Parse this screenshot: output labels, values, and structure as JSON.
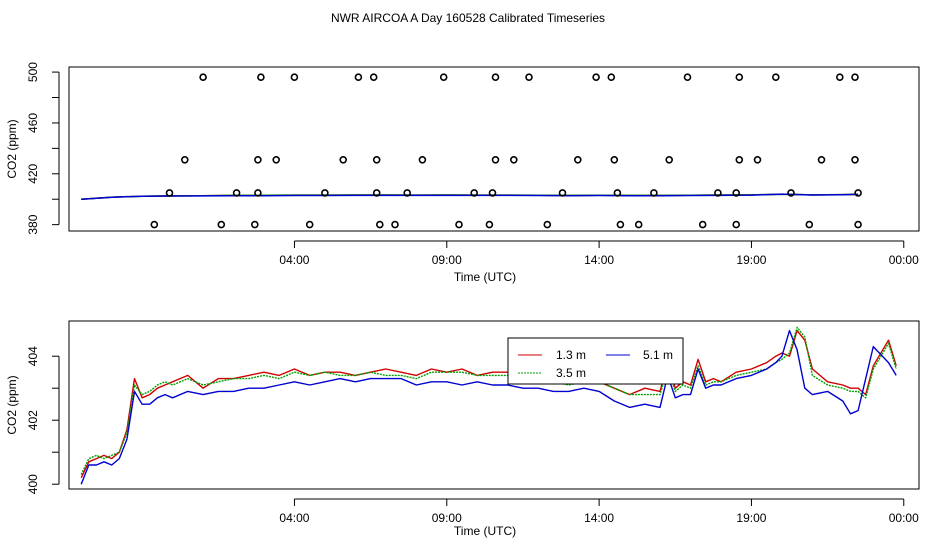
{
  "chart_data": [
    {
      "type": "scatter",
      "title": "NWR AIRCOA A  Day 160528  Calibrated Timeseries",
      "xlabel": "Time (UTC)",
      "ylabel": "CO2 (ppm)",
      "xlim": [
        -3.4,
        24.5
      ],
      "ylim": [
        375,
        504
      ],
      "x_tick_values": [
        4,
        9,
        14,
        19,
        24
      ],
      "x_tick_labels": [
        "04:00",
        "09:00",
        "14:00",
        "19:00",
        "00:00"
      ],
      "y_tick_values": [
        380,
        420,
        460,
        500
      ],
      "y_tick_labels": [
        "380",
        "420",
        "460",
        "500"
      ],
      "y_minor_ticks": [
        400,
        440,
        480
      ],
      "points": [
        {
          "x": -0.6,
          "y": 380
        },
        {
          "x": -0.1,
          "y": 405
        },
        {
          "x": 0.4,
          "y": 431
        },
        {
          "x": 1.0,
          "y": 496
        },
        {
          "x": 1.6,
          "y": 380
        },
        {
          "x": 2.1,
          "y": 405
        },
        {
          "x": 2.7,
          "y": 380
        },
        {
          "x": 2.8,
          "y": 405
        },
        {
          "x": 2.8,
          "y": 431
        },
        {
          "x": 2.9,
          "y": 496
        },
        {
          "x": 3.4,
          "y": 431
        },
        {
          "x": 4.0,
          "y": 496
        },
        {
          "x": 4.5,
          "y": 380
        },
        {
          "x": 5.0,
          "y": 405
        },
        {
          "x": 5.6,
          "y": 431
        },
        {
          "x": 6.1,
          "y": 496
        },
        {
          "x": 6.6,
          "y": 496
        },
        {
          "x": 6.7,
          "y": 431
        },
        {
          "x": 6.7,
          "y": 405
        },
        {
          "x": 6.8,
          "y": 380
        },
        {
          "x": 7.3,
          "y": 380
        },
        {
          "x": 7.7,
          "y": 405
        },
        {
          "x": 8.2,
          "y": 431
        },
        {
          "x": 8.9,
          "y": 496
        },
        {
          "x": 9.4,
          "y": 380
        },
        {
          "x": 9.9,
          "y": 405
        },
        {
          "x": 10.4,
          "y": 380
        },
        {
          "x": 10.5,
          "y": 405
        },
        {
          "x": 10.6,
          "y": 431
        },
        {
          "x": 10.6,
          "y": 496
        },
        {
          "x": 11.2,
          "y": 431
        },
        {
          "x": 11.7,
          "y": 496
        },
        {
          "x": 12.3,
          "y": 380
        },
        {
          "x": 12.8,
          "y": 405
        },
        {
          "x": 13.3,
          "y": 431
        },
        {
          "x": 13.9,
          "y": 496
        },
        {
          "x": 14.4,
          "y": 496
        },
        {
          "x": 14.5,
          "y": 431
        },
        {
          "x": 14.6,
          "y": 405
        },
        {
          "x": 14.7,
          "y": 380
        },
        {
          "x": 15.3,
          "y": 380
        },
        {
          "x": 15.8,
          "y": 405
        },
        {
          "x": 16.3,
          "y": 431
        },
        {
          "x": 16.9,
          "y": 496
        },
        {
          "x": 17.4,
          "y": 380
        },
        {
          "x": 17.9,
          "y": 405
        },
        {
          "x": 18.5,
          "y": 380
        },
        {
          "x": 18.5,
          "y": 405
        },
        {
          "x": 18.6,
          "y": 431
        },
        {
          "x": 18.6,
          "y": 496
        },
        {
          "x": 19.2,
          "y": 431
        },
        {
          "x": 19.8,
          "y": 496
        },
        {
          "x": 20.3,
          "y": 405
        },
        {
          "x": 20.9,
          "y": 380
        },
        {
          "x": 21.3,
          "y": 431
        },
        {
          "x": 21.9,
          "y": 496
        },
        {
          "x": 22.4,
          "y": 496
        },
        {
          "x": 22.4,
          "y": 431
        },
        {
          "x": 22.5,
          "y": 405
        },
        {
          "x": 22.5,
          "y": 380
        }
      ],
      "lines": [
        {
          "name": "1.3 m",
          "color": "#d00000",
          "x": [
            -3.0,
            -2.0,
            -1.0,
            0.0,
            1.0,
            2.0,
            3.0,
            4.0,
            5.0,
            6.0,
            7.0,
            8.0,
            9.0,
            10.0,
            11.0,
            12.0,
            13.0,
            14.0,
            15.0,
            16.0,
            17.0,
            18.0,
            19.0,
            20.0,
            21.0,
            22.0,
            22.5
          ],
          "y": [
            400.0,
            401.6,
            402.4,
            402.6,
            402.8,
            403.0,
            403.1,
            403.2,
            403.2,
            403.3,
            403.3,
            403.2,
            403.3,
            403.2,
            403.2,
            403.1,
            403.0,
            403.1,
            403.0,
            403.0,
            403.1,
            403.3,
            403.4,
            403.9,
            403.4,
            403.6,
            403.9
          ]
        },
        {
          "name": "3.5 m",
          "color": "#00a000",
          "x": [
            -3.0,
            -2.0,
            -1.0,
            0.0,
            1.0,
            2.0,
            3.0,
            4.0,
            5.0,
            6.0,
            7.0,
            8.0,
            9.0,
            10.0,
            11.0,
            12.0,
            13.0,
            14.0,
            15.0,
            16.0,
            17.0,
            18.0,
            19.0,
            20.0,
            21.0,
            22.0,
            22.5
          ],
          "y": [
            400.0,
            401.6,
            402.4,
            402.6,
            402.8,
            403.0,
            403.1,
            403.2,
            403.2,
            403.3,
            403.3,
            403.2,
            403.3,
            403.2,
            403.2,
            403.1,
            403.0,
            403.1,
            403.0,
            403.0,
            403.1,
            403.3,
            403.4,
            403.9,
            403.4,
            403.6,
            403.9
          ]
        },
        {
          "name": "5.1 m",
          "color": "#0000d0",
          "x": [
            -3.0,
            -2.0,
            -1.0,
            0.0,
            1.0,
            2.0,
            3.0,
            4.0,
            5.0,
            6.0,
            7.0,
            8.0,
            9.0,
            10.0,
            11.0,
            12.0,
            13.0,
            14.0,
            15.0,
            16.0,
            17.0,
            18.0,
            19.0,
            20.0,
            21.0,
            22.0,
            22.5
          ],
          "y": [
            400.0,
            401.6,
            402.4,
            402.5,
            402.6,
            402.7,
            402.8,
            402.9,
            402.9,
            403.0,
            403.0,
            403.0,
            403.0,
            403.0,
            403.0,
            402.9,
            402.8,
            402.9,
            402.8,
            402.8,
            402.9,
            403.0,
            403.2,
            404.0,
            403.3,
            403.5,
            403.8
          ]
        }
      ]
    },
    {
      "type": "line",
      "title": "",
      "xlabel": "Time (UTC)",
      "ylabel": "CO2 (ppm)",
      "xlim": [
        -3.4,
        24.5
      ],
      "ylim": [
        399.85,
        405.1
      ],
      "x_tick_values": [
        4,
        9,
        14,
        19,
        24
      ],
      "x_tick_labels": [
        "04:00",
        "09:00",
        "14:00",
        "19:00",
        "00:00"
      ],
      "y_tick_values": [
        400,
        402,
        404
      ],
      "y_tick_labels": [
        "400",
        "402",
        "404"
      ],
      "y_minor_ticks": [
        401,
        403
      ],
      "legend": {
        "placement": "top-center",
        "entries": [
          "1.3 m",
          "3.5 m",
          "5.1 m"
        ]
      },
      "series": [
        {
          "name": "1.3 m",
          "color": "#d00000",
          "x": [
            -3.0,
            -2.75,
            -2.5,
            -2.25,
            -2.0,
            -1.75,
            -1.5,
            -1.25,
            -1.0,
            -0.75,
            -0.5,
            -0.25,
            0.0,
            0.5,
            1.0,
            1.5,
            2.0,
            2.5,
            3.0,
            3.5,
            4.0,
            4.5,
            5.0,
            5.5,
            6.0,
            6.5,
            7.0,
            7.5,
            8.0,
            8.5,
            9.0,
            9.5,
            10.0,
            10.5,
            11.0,
            11.5,
            12.0,
            12.5,
            13.0,
            13.5,
            14.0,
            14.5,
            15.0,
            15.5,
            16.0,
            16.25,
            16.5,
            16.75,
            17.0,
            17.25,
            17.5,
            17.75,
            18.0,
            18.5,
            19.0,
            19.5,
            19.8,
            20.0,
            20.25,
            20.5,
            20.75,
            21.0,
            21.5,
            22.0,
            22.25,
            22.5,
            22.75,
            23.0,
            23.5,
            23.75
          ],
          "y": [
            400.2,
            400.7,
            400.8,
            400.9,
            400.8,
            401.0,
            401.7,
            403.3,
            402.7,
            402.8,
            403.0,
            403.1,
            403.2,
            403.4,
            403.0,
            403.3,
            403.3,
            403.4,
            403.5,
            403.4,
            403.6,
            403.4,
            403.5,
            403.5,
            403.4,
            403.5,
            403.6,
            403.5,
            403.4,
            403.6,
            403.5,
            403.6,
            403.4,
            403.5,
            403.5,
            403.4,
            403.4,
            403.3,
            403.2,
            403.3,
            403.2,
            403.0,
            402.8,
            403.0,
            402.9,
            403.8,
            403.0,
            403.2,
            403.1,
            403.9,
            403.2,
            403.3,
            403.2,
            403.5,
            403.6,
            403.8,
            404.0,
            404.1,
            404.0,
            404.8,
            404.5,
            403.6,
            403.2,
            403.1,
            403.0,
            403.0,
            402.8,
            403.7,
            404.5,
            403.7
          ]
        },
        {
          "name": "3.5 m",
          "color": "#00a000",
          "x": [
            -3.0,
            -2.75,
            -2.5,
            -2.25,
            -2.0,
            -1.75,
            -1.5,
            -1.25,
            -1.0,
            -0.75,
            -0.5,
            -0.25,
            0.0,
            0.5,
            1.0,
            1.5,
            2.0,
            2.5,
            3.0,
            3.5,
            4.0,
            4.5,
            5.0,
            5.5,
            6.0,
            6.5,
            7.0,
            7.5,
            8.0,
            8.5,
            9.0,
            9.5,
            10.0,
            10.5,
            11.0,
            11.5,
            12.0,
            12.5,
            13.0,
            13.5,
            14.0,
            14.5,
            15.0,
            15.5,
            16.0,
            16.25,
            16.5,
            16.75,
            17.0,
            17.25,
            17.5,
            17.75,
            18.0,
            18.5,
            19.0,
            19.5,
            19.8,
            20.0,
            20.25,
            20.5,
            20.75,
            21.0,
            21.5,
            22.0,
            22.25,
            22.5,
            22.75,
            23.0,
            23.5,
            23.75
          ],
          "y": [
            400.3,
            400.8,
            400.9,
            400.8,
            400.9,
            401.0,
            401.6,
            403.1,
            402.8,
            402.9,
            403.1,
            403.2,
            403.1,
            403.3,
            403.1,
            403.2,
            403.3,
            403.3,
            403.4,
            403.3,
            403.5,
            403.4,
            403.5,
            403.4,
            403.4,
            403.5,
            403.4,
            403.4,
            403.3,
            403.5,
            403.5,
            403.5,
            403.4,
            403.4,
            403.4,
            403.4,
            403.3,
            403.2,
            403.1,
            403.2,
            403.2,
            403.0,
            402.8,
            402.8,
            402.8,
            403.6,
            402.9,
            403.1,
            403.0,
            403.7,
            403.1,
            403.2,
            403.2,
            403.4,
            403.5,
            403.6,
            403.8,
            403.9,
            404.1,
            404.9,
            404.6,
            403.4,
            403.1,
            403.0,
            402.9,
            402.9,
            402.7,
            403.6,
            404.4,
            403.6
          ]
        },
        {
          "name": "5.1 m",
          "color": "#0000d0",
          "x": [
            -3.0,
            -2.75,
            -2.5,
            -2.25,
            -2.0,
            -1.75,
            -1.5,
            -1.25,
            -1.0,
            -0.75,
            -0.5,
            -0.25,
            0.0,
            0.5,
            1.0,
            1.5,
            2.0,
            2.5,
            3.0,
            3.5,
            4.0,
            4.5,
            5.0,
            5.5,
            6.0,
            6.5,
            7.0,
            7.5,
            8.0,
            8.5,
            9.0,
            9.5,
            10.0,
            10.5,
            11.0,
            11.5,
            12.0,
            12.5,
            13.0,
            13.5,
            14.0,
            14.5,
            15.0,
            15.5,
            16.0,
            16.25,
            16.5,
            16.75,
            17.0,
            17.25,
            17.5,
            17.75,
            18.0,
            18.5,
            19.0,
            19.5,
            19.8,
            20.0,
            20.25,
            20.5,
            20.75,
            21.0,
            21.5,
            22.0,
            22.25,
            22.5,
            22.75,
            23.0,
            23.5,
            23.75
          ],
          "y": [
            400.0,
            400.6,
            400.6,
            400.7,
            400.6,
            400.8,
            401.4,
            402.9,
            402.5,
            402.5,
            402.7,
            402.8,
            402.7,
            402.9,
            402.8,
            402.9,
            402.9,
            403.0,
            403.0,
            403.1,
            403.2,
            403.1,
            403.2,
            403.3,
            403.2,
            403.3,
            403.3,
            403.3,
            403.1,
            403.2,
            403.2,
            403.1,
            403.2,
            403.1,
            403.1,
            403.0,
            403.0,
            402.9,
            402.9,
            403.0,
            402.9,
            402.6,
            402.4,
            402.5,
            402.4,
            403.4,
            402.7,
            402.8,
            402.8,
            403.6,
            403.0,
            403.1,
            403.1,
            403.3,
            403.4,
            403.6,
            403.8,
            404.0,
            404.8,
            404.2,
            403.0,
            402.8,
            402.9,
            402.6,
            402.2,
            402.3,
            403.3,
            404.3,
            403.8,
            403.4
          ]
        }
      ]
    }
  ]
}
